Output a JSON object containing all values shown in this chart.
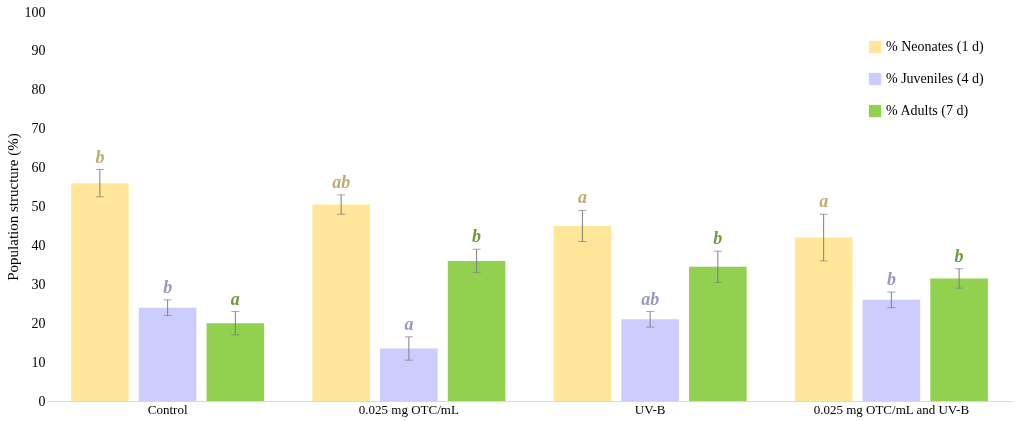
{
  "chart_data": {
    "type": "bar",
    "ylabel": "Population structure (%)",
    "categories": [
      "Control",
      "0.025 mg OTC/mL",
      "UV-B",
      "0.025 mg OTC/mL and  UV-B"
    ],
    "series": [
      {
        "name": "% Neonates (1 d)",
        "color": "#ffe699",
        "values": [
          56,
          50.5,
          45,
          42
        ],
        "errors": [
          3.5,
          2.5,
          4,
          6
        ],
        "value_labels": [
          "b",
          "ab",
          "a",
          "a"
        ]
      },
      {
        "name": "% Juveniles (4 d)",
        "color": "#ccccff",
        "values": [
          24,
          13.5,
          21,
          26
        ],
        "errors": [
          2,
          3,
          2,
          2
        ],
        "value_labels": [
          "b",
          "a",
          "ab",
          "b"
        ]
      },
      {
        "name": "% Adults (7 d)",
        "color": "#92d050",
        "values": [
          20,
          36,
          34.5,
          31.5
        ],
        "errors": [
          3,
          3,
          4,
          2.5
        ],
        "value_labels": [
          "a",
          "b",
          "b",
          "b"
        ]
      }
    ],
    "ylim": [
      0,
      100
    ],
    "yticks": [
      0,
      10,
      20,
      30,
      40,
      50,
      60,
      70,
      80,
      90,
      100
    ],
    "grid": false,
    "legend": "top right"
  }
}
